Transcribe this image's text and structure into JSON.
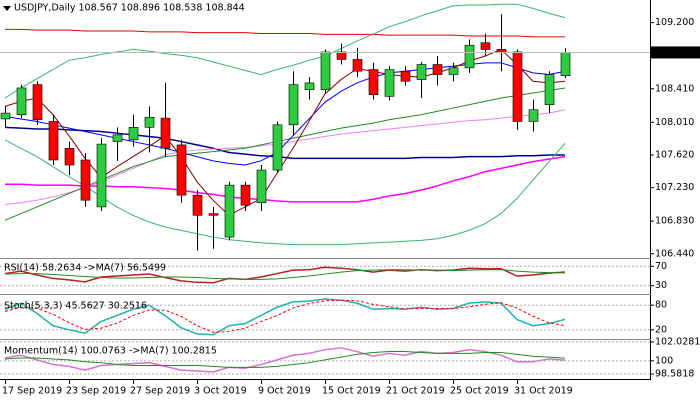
{
  "chart_data": [
    {
      "type": "candlestick",
      "title": "USDJPY,Daily  108.567 108.896 108.538 108.844",
      "x": [
        "17 Sep 2019",
        null,
        null,
        null,
        "23 Sep 2019",
        null,
        null,
        null,
        "27 Sep 2019",
        null,
        null,
        null,
        "3 Oct 2019",
        null,
        null,
        null,
        "9 Oct 2019",
        null,
        null,
        null,
        "15 Oct 2019",
        null,
        null,
        null,
        "21 Oct 2019",
        null,
        null,
        null,
        "25 Oct 2019",
        null,
        null,
        null,
        "31 Oct 2019",
        null,
        null,
        null
      ],
      "open": [
        108.05,
        108.1,
        108.46,
        108.02,
        107.7,
        107.56,
        107.0,
        107.78,
        107.8,
        107.95,
        108.06,
        107.74,
        107.14,
        106.92,
        106.64,
        107.26,
        107.05,
        107.44,
        107.98,
        108.4,
        108.4,
        108.85,
        108.76,
        108.64,
        108.32,
        108.62,
        108.52,
        108.7,
        108.58,
        108.66,
        108.96,
        108.88,
        108.85,
        108.02,
        108.22,
        108.567
      ],
      "high": [
        108.2,
        108.46,
        108.5,
        108.1,
        107.78,
        107.64,
        107.82,
        107.95,
        108.1,
        108.2,
        108.48,
        107.8,
        107.2,
        107.0,
        107.3,
        107.3,
        107.5,
        108.02,
        108.62,
        108.55,
        108.88,
        108.95,
        108.9,
        108.72,
        108.68,
        108.68,
        108.73,
        108.8,
        108.72,
        109.0,
        109.07,
        109.3,
        108.88,
        108.28,
        108.62,
        108.896
      ],
      "low": [
        107.95,
        108.06,
        107.98,
        107.5,
        107.38,
        107.0,
        106.95,
        107.55,
        107.72,
        107.65,
        107.6,
        107.05,
        106.48,
        106.5,
        106.6,
        106.95,
        106.95,
        107.4,
        107.85,
        108.28,
        108.35,
        108.7,
        108.55,
        108.28,
        108.27,
        108.45,
        108.3,
        108.45,
        108.5,
        108.6,
        108.8,
        108.62,
        107.92,
        107.9,
        108.12,
        108.538
      ],
      "close": [
        108.12,
        108.42,
        108.04,
        107.56,
        107.5,
        107.08,
        107.75,
        107.86,
        107.95,
        108.07,
        107.7,
        107.14,
        106.9,
        106.9,
        107.26,
        107.02,
        107.44,
        107.98,
        108.46,
        108.48,
        108.85,
        108.76,
        108.62,
        108.34,
        108.64,
        108.5,
        108.7,
        108.58,
        108.66,
        108.93,
        108.88,
        108.84,
        108.02,
        108.16,
        108.58,
        108.844
      ],
      "up_color": "#2ecc40",
      "down_color": "#ff0000",
      "overlays": [
        {
          "color": "#e00000",
          "values": [
            109.12,
            109.12,
            109.11,
            109.11,
            109.11,
            109.1,
            109.1,
            109.1,
            109.1,
            109.09,
            109.09,
            109.09,
            109.08,
            109.08,
            109.08,
            109.08,
            109.07,
            109.07,
            109.07,
            109.07,
            109.06,
            109.06,
            109.06,
            109.06,
            109.05,
            109.05,
            109.05,
            109.05,
            109.05,
            109.04,
            109.04,
            109.04,
            109.04,
            109.03,
            109.03,
            109.03
          ]
        },
        {
          "color": "#00008b",
          "values": [
            107.95,
            107.94,
            107.93,
            107.93,
            107.92,
            107.91,
            107.9,
            107.88,
            107.86,
            107.84,
            107.82,
            107.78,
            107.74,
            107.7,
            107.65,
            107.63,
            107.61,
            107.6,
            107.58,
            107.58,
            107.58,
            107.58,
            107.58,
            107.58,
            107.58,
            107.58,
            107.59,
            107.59,
            107.59,
            107.6,
            107.6,
            107.6,
            107.61,
            107.61,
            107.62,
            107.62
          ]
        },
        {
          "color": "#ff00ff",
          "values": [
            107.27,
            107.27,
            107.26,
            107.26,
            107.26,
            107.25,
            107.25,
            107.24,
            107.24,
            107.23,
            107.22,
            107.2,
            107.17,
            107.15,
            107.12,
            107.1,
            107.09,
            107.07,
            107.06,
            107.06,
            107.06,
            107.06,
            107.06,
            107.09,
            107.13,
            107.16,
            107.2,
            107.25,
            107.31,
            107.36,
            107.42,
            107.46,
            107.5,
            107.54,
            107.57,
            107.6
          ]
        },
        {
          "color": "#ee82ee",
          "values": [
            107.03,
            107.05,
            107.08,
            107.12,
            107.17,
            107.23,
            107.3,
            107.38,
            107.46,
            107.54,
            107.62,
            107.66,
            107.68,
            107.69,
            107.7,
            107.71,
            107.73,
            107.75,
            107.78,
            107.81,
            107.84,
            107.87,
            107.89,
            107.91,
            107.93,
            107.95,
            107.97,
            107.99,
            108.01,
            108.03,
            108.04,
            108.06,
            108.08,
            108.1,
            108.12,
            108.16
          ]
        },
        {
          "color": "#228b22",
          "values": [
            106.84,
            106.92,
            107.0,
            107.08,
            107.16,
            107.24,
            107.32,
            107.4,
            107.48,
            107.54,
            107.6,
            107.62,
            107.64,
            107.66,
            107.68,
            107.7,
            107.74,
            107.78,
            107.82,
            107.86,
            107.9,
            107.94,
            107.97,
            108.0,
            108.04,
            108.07,
            108.1,
            108.14,
            108.18,
            108.22,
            108.26,
            108.3,
            108.33,
            108.36,
            108.39,
            108.42
          ]
        },
        {
          "color": "#0000ff",
          "values": [
            108.08,
            108.05,
            108.02,
            107.98,
            107.94,
            107.9,
            107.86,
            107.82,
            107.78,
            107.74,
            107.7,
            107.65,
            107.6,
            107.55,
            107.52,
            107.5,
            107.55,
            107.65,
            107.85,
            108.05,
            108.25,
            108.38,
            108.48,
            108.55,
            108.6,
            108.62,
            108.64,
            108.66,
            108.68,
            108.7,
            108.72,
            108.72,
            108.66,
            108.6,
            108.58,
            108.62
          ]
        },
        {
          "color": "#8b0000",
          "values": [
            108.2,
            108.26,
            108.3,
            108.1,
            107.85,
            107.58,
            107.35,
            107.48,
            107.6,
            107.72,
            107.85,
            107.6,
            107.3,
            107.08,
            106.9,
            107.0,
            107.1,
            107.4,
            107.7,
            108.02,
            108.35,
            108.52,
            108.65,
            108.62,
            108.58,
            108.56,
            108.55,
            108.6,
            108.66,
            108.74,
            108.8,
            108.88,
            108.7,
            108.5,
            108.48,
            108.5
          ]
        },
        {
          "color": "#3cb371",
          "values": [
            108.3,
            108.42,
            108.53,
            108.64,
            108.75,
            108.78,
            108.82,
            108.85,
            108.88,
            108.86,
            108.83,
            108.81,
            108.78,
            108.73,
            108.68,
            108.63,
            108.58,
            108.64,
            108.69,
            108.75,
            108.8,
            108.89,
            108.98,
            109.06,
            109.15,
            109.21,
            109.28,
            109.34,
            109.4,
            109.41,
            109.41,
            109.42,
            109.42,
            109.37,
            109.31,
            109.26
          ]
        },
        {
          "color": "#3cb371",
          "values": [
            107.8,
            107.7,
            107.6,
            107.48,
            107.36,
            107.25,
            107.12,
            107.0,
            106.9,
            106.82,
            106.76,
            106.72,
            106.68,
            106.64,
            106.61,
            106.59,
            106.57,
            106.56,
            106.55,
            106.55,
            106.55,
            106.55,
            106.56,
            106.57,
            106.58,
            106.59,
            106.6,
            106.62,
            106.66,
            106.72,
            106.8,
            106.92,
            107.1,
            107.32,
            107.54,
            107.76
          ]
        }
      ],
      "ylim": [
        106.39,
        109.47
      ],
      "yticks": [
        {
          "value": 109.2,
          "label": "109.200"
        },
        {
          "value": 108.41,
          "label": "108.410"
        },
        {
          "value": 108.01,
          "label": "108.010"
        },
        {
          "value": 107.62,
          "label": "107.620"
        },
        {
          "value": 107.23,
          "label": "107.230"
        },
        {
          "value": 106.83,
          "label": "106.830"
        },
        {
          "value": 106.44,
          "label": "106.440"
        }
      ]
    },
    {
      "type": "line",
      "title": "RSI(14) 58.2634 ->MA(7) 56.5499",
      "series": [
        {
          "color": "#b22222",
          "values": [
            55,
            60,
            52,
            45,
            42,
            38,
            48,
            50,
            52,
            54,
            47,
            40,
            37,
            36,
            45,
            43,
            48,
            55,
            62,
            63,
            68,
            66,
            63,
            58,
            62,
            60,
            63,
            61,
            62,
            66,
            65,
            65,
            50,
            52,
            56,
            58.2634
          ]
        },
        {
          "color": "#228b22",
          "values": [
            54,
            55,
            55,
            53,
            51,
            49,
            47,
            46,
            46,
            47,
            48,
            48,
            47,
            45,
            44,
            43,
            43,
            44,
            47,
            50,
            54,
            58,
            61,
            62,
            63,
            63,
            62,
            62,
            61,
            62,
            63,
            63,
            60,
            58,
            57,
            56.5499
          ]
        }
      ],
      "ylim": [
        15,
        85
      ],
      "yticks": [
        30,
        70
      ]
    },
    {
      "type": "line",
      "title": "Stoch(5,3,3) 45.5627 30.2516",
      "series": [
        {
          "color": "#20b2aa",
          "values": [
            70,
            85,
            60,
            30,
            20,
            12,
            40,
            55,
            70,
            80,
            55,
            25,
            10,
            8,
            30,
            35,
            55,
            75,
            88,
            90,
            95,
            92,
            85,
            70,
            72,
            70,
            75,
            70,
            72,
            85,
            88,
            85,
            45,
            30,
            35,
            45.5627
          ]
        },
        {
          "color": "#ff0000",
          "dashed": true,
          "values": [
            65,
            75,
            72,
            58,
            37,
            21,
            24,
            36,
            55,
            68,
            68,
            53,
            30,
            14,
            16,
            24,
            40,
            55,
            73,
            84,
            91,
            92,
            91,
            82,
            76,
            71,
            72,
            72,
            72,
            76,
            82,
            86,
            73,
            53,
            37,
            30.2516
          ]
        }
      ],
      "ylim": [
        0,
        100
      ],
      "yticks": [
        20,
        80
      ]
    },
    {
      "type": "line",
      "title": "Momentum(14) 100.0763 ->MA(7) 100.2815",
      "series": [
        {
          "color": "#da70d6",
          "values": [
            100.3,
            100.6,
            100.1,
            99.6,
            99.4,
            99.0,
            99.5,
            99.6,
            99.7,
            99.8,
            99.4,
            99.0,
            98.9,
            98.8,
            99.3,
            99.2,
            99.6,
            100.1,
            100.6,
            100.8,
            101.2,
            101.4,
            101.0,
            100.5,
            100.8,
            100.6,
            101.0,
            100.8,
            100.9,
            101.2,
            101.0,
            100.6,
            99.9,
            99.9,
            100.2,
            100.0763
          ]
        },
        {
          "color": "#228b22",
          "values": [
            100.2,
            100.3,
            100.3,
            100.2,
            100.1,
            99.9,
            99.8,
            99.6,
            99.5,
            99.5,
            99.5,
            99.5,
            99.5,
            99.4,
            99.3,
            99.3,
            99.3,
            99.4,
            99.6,
            99.8,
            100.1,
            100.4,
            100.7,
            100.9,
            101.0,
            101.0,
            100.9,
            100.8,
            100.8,
            100.8,
            100.9,
            100.9,
            100.7,
            100.5,
            100.4,
            100.2815
          ]
        }
      ],
      "ylim": [
        98.5818,
        102.0281
      ],
      "yticks": [
        98.5818,
        100,
        102.0281
      ]
    }
  ]
}
